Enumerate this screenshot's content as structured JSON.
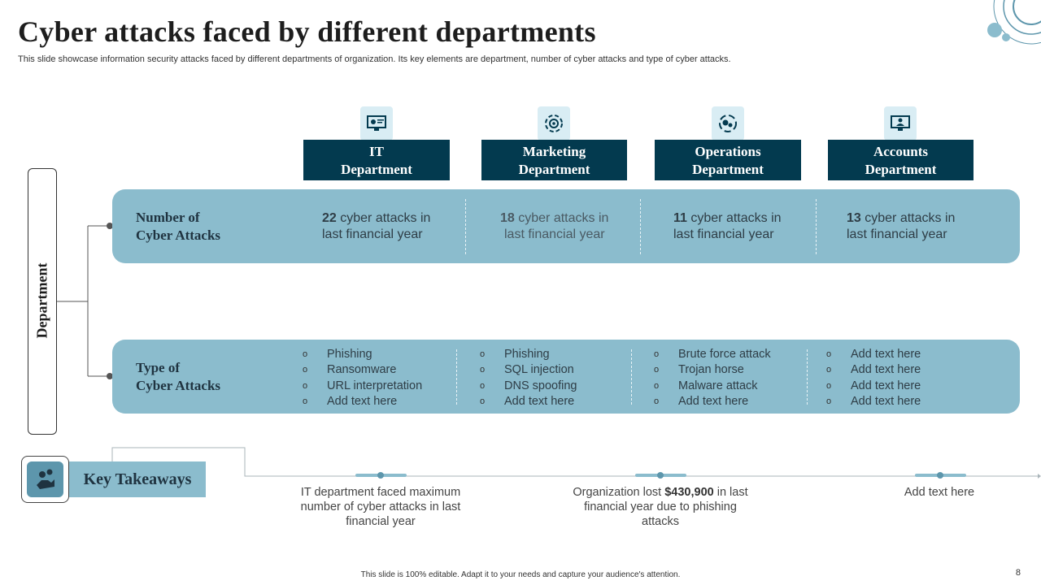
{
  "header": {
    "title": "Cyber attacks faced by different departments",
    "subtitle": "This slide showcase information security attacks faced by different departments of organization. Its key elements are department, number of cyber attacks and type of cyber attacks."
  },
  "departments": [
    {
      "name_line1": "IT",
      "name_line2": "Department",
      "icon": "monitor-gear-icon"
    },
    {
      "name_line1": "Marketing",
      "name_line2": "Department",
      "icon": "target-cycle-icon"
    },
    {
      "name_line1": "Operations",
      "name_line2": "Department",
      "icon": "gears-cycle-icon"
    },
    {
      "name_line1": "Accounts",
      "name_line2": "Department",
      "icon": "computer-user-icon"
    }
  ],
  "side_label": "Department",
  "rows": {
    "count": {
      "label_line1": "Number of",
      "label_line2": "Cyber Attacks",
      "cells": [
        {
          "value": "22",
          "line1_rest": " cyber attacks in",
          "line2": "last financial year"
        },
        {
          "value": "18",
          "line1_rest": " cyber attacks in",
          "line2": "last financial year"
        },
        {
          "value": "11",
          "line1_rest": " cyber attacks in",
          "line2": "last financial year"
        },
        {
          "value": "13",
          "line1_rest": " cyber attacks in",
          "line2": "last financial year"
        }
      ]
    },
    "types": {
      "label_line1": "Type of",
      "label_line2": "Cyber Attacks",
      "bullet": "o",
      "cells": [
        [
          "Phishing",
          "Ransomware",
          "URL interpretation",
          "Add text here"
        ],
        [
          "Phishing",
          "SQL injection",
          "DNS spoofing",
          "Add text here"
        ],
        [
          "Brute force attack",
          "Trojan horse",
          "Malware attack",
          "Add text here"
        ],
        [
          "Add text here",
          "Add text here",
          "Add text here",
          "Add text here"
        ]
      ]
    }
  },
  "key_takeaways": {
    "label": "Key Takeaways",
    "icon": "hand-coins-icon",
    "items": [
      {
        "text": "IT department faced maximum number of cyber attacks in last financial year"
      },
      {
        "pre": "Organization lost ",
        "bold": "$430,900",
        "post": " in last financial year due to phishing attacks"
      },
      {
        "text": "Add text here"
      }
    ]
  },
  "footer": {
    "note": "This slide is 100% editable. Adapt it to your needs and capture your audience's attention.",
    "page_number": "8"
  },
  "colors": {
    "dark_teal": "#033a4f",
    "band": "#8bbccd",
    "icon_bg": "#d9edf4",
    "accent": "#5d96ac"
  }
}
